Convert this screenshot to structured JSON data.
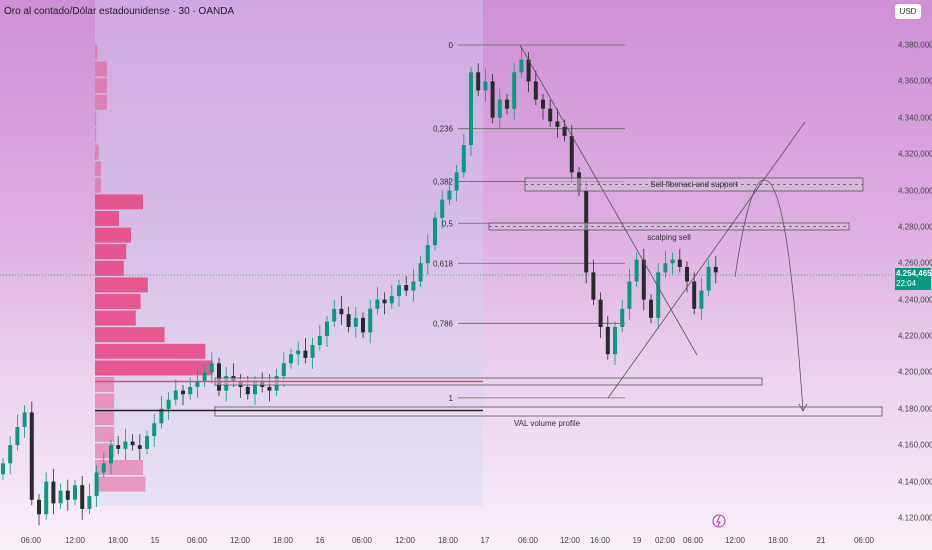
{
  "header": {
    "title": "Oro al contado/Dólar estadounidense · 30 · OANDA",
    "currency_button": "USD"
  },
  "price_label": {
    "price": "4.254,465",
    "countdown": "22:04",
    "color": "#089981"
  },
  "colors": {
    "up": "#089981",
    "down": "#2a2a2e",
    "volume_profile": "#e8437e",
    "poc_line": "#e8437e"
  },
  "icons": [
    "lightning-icon"
  ],
  "annotations": {
    "fib_levels": [
      {
        "label": "0",
        "price": 4380
      },
      {
        "label": "0,236",
        "price": 4334
      },
      {
        "label": "0,382",
        "price": 4305
      },
      {
        "label": "0,5",
        "price": 4282
      },
      {
        "label": "0,618",
        "price": 4260
      },
      {
        "label": "0,786",
        "price": 4227
      },
      {
        "label": "1",
        "price": 4186
      }
    ],
    "sell_zone_label": "Sell fibonaci and support",
    "scalping_label": "scalping sell",
    "val_label": "VAL volume profile"
  },
  "chart_data": {
    "type": "candlestick",
    "title": "Oro al contado/Dólar estadounidense · 30 · OANDA",
    "ylim": [
      4120,
      4380
    ],
    "yticks": [
      "4.380,000",
      "4.360,000",
      "4.340,000",
      "4.320,000",
      "4.300,000",
      "4.280,000",
      "4.260,000",
      "4.240,000",
      "4.220,000",
      "4.200,000",
      "4.180,000",
      "4.160,000",
      "4.140,000",
      "4.120,000"
    ],
    "ytick_values": [
      4380,
      4360,
      4340,
      4320,
      4300,
      4280,
      4260,
      4240,
      4220,
      4200,
      4180,
      4160,
      4140,
      4120
    ],
    "xticks": [
      "06:00",
      "12:00",
      "18:00",
      "15",
      "06:00",
      "12:00",
      "18:00",
      "16",
      "06:00",
      "12:00",
      "18:00",
      "17",
      "06:00",
      "12:00",
      "16:00",
      "19",
      "02:00",
      "06:00",
      "12:00",
      "18:00",
      "21",
      "06:00"
    ],
    "closes": [
      4150,
      4160,
      4170,
      4178,
      4130,
      4122,
      4140,
      4128,
      4135,
      4130,
      4138,
      4125,
      4132,
      4145,
      4150,
      4160,
      4158,
      4162,
      4160,
      4158,
      4165,
      4172,
      4180,
      4185,
      4190,
      4188,
      4192,
      4195,
      4200,
      4205,
      4190,
      4198,
      4195,
      4192,
      4188,
      4195,
      4192,
      4190,
      4198,
      4205,
      4210,
      4212,
      4208,
      4215,
      4220,
      4228,
      4235,
      4232,
      4225,
      4230,
      4222,
      4235,
      4240,
      4238,
      4242,
      4248,
      4245,
      4250,
      4260,
      4270,
      4285,
      4295,
      4300,
      4310,
      4325,
      4365,
      4355,
      4360,
      4340,
      4350,
      4345,
      4365,
      4372,
      4360,
      4350,
      4345,
      4338,
      4335,
      4330,
      4310,
      4300,
      4255,
      4240,
      4225,
      4210,
      4225,
      4235,
      4250,
      4262,
      4240,
      4230,
      4255,
      4260,
      4262,
      4258,
      4250,
      4235,
      4245,
      4258,
      4255
    ],
    "volume_profile": [
      2,
      10,
      10,
      10,
      1,
      1,
      3,
      5,
      5,
      40,
      20,
      30,
      26,
      24,
      44,
      38,
      34,
      58,
      92,
      98,
      16,
      16,
      16,
      16,
      16,
      40,
      42
    ],
    "last_price": 4254.465
  }
}
